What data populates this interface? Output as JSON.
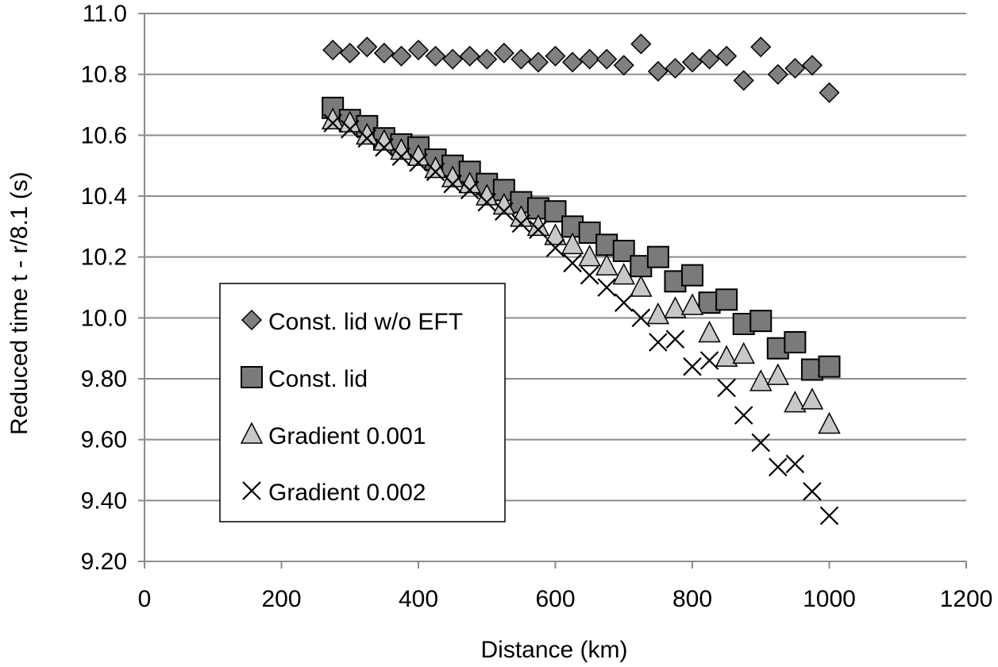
{
  "chart_data": {
    "type": "scatter",
    "title": "",
    "xlabel": "Distance (km)",
    "ylabel": "Reduced time t - r/8.1 (s)",
    "xlim": [
      0,
      1200
    ],
    "ylim": [
      9.2,
      11.0
    ],
    "x_ticks": [
      0,
      200,
      400,
      600,
      800,
      1000,
      1200
    ],
    "x_tick_labels": [
      "0",
      "200",
      "400",
      "600",
      "800",
      "1000",
      "1200"
    ],
    "y_ticks": [
      9.2,
      9.4,
      9.6,
      9.8,
      10.0,
      10.2,
      10.4,
      10.6,
      10.8,
      11.0
    ],
    "y_tick_labels": [
      "9.20",
      "9.40",
      "9.60",
      "9.80",
      "10.0",
      "10.2",
      "10.4",
      "10.6",
      "10.8",
      "11.0"
    ],
    "grid": "horizontal",
    "legend_position": "left-center",
    "colors": {
      "grid": "#8c8c8c",
      "diamond_fill": "#808080",
      "square_fill": "#7a7a7a",
      "triangle_fill": "#c8c8c8",
      "marker_stroke": "#000000"
    },
    "series": [
      {
        "name": "Const. lid w/o EFT",
        "marker": "diamond",
        "x": [
          275,
          300,
          325,
          350,
          375,
          400,
          425,
          450,
          475,
          500,
          525,
          550,
          575,
          600,
          625,
          650,
          675,
          700,
          725,
          750,
          775,
          800,
          825,
          850,
          875,
          900,
          925,
          950,
          975,
          1000
        ],
        "y": [
          10.88,
          10.87,
          10.89,
          10.87,
          10.86,
          10.88,
          10.86,
          10.85,
          10.86,
          10.85,
          10.87,
          10.85,
          10.84,
          10.86,
          10.84,
          10.85,
          10.85,
          10.83,
          10.9,
          10.81,
          10.82,
          10.84,
          10.85,
          10.86,
          10.78,
          10.89,
          10.8,
          10.82,
          10.83,
          10.74
        ]
      },
      {
        "name": "Const. lid",
        "marker": "square",
        "x": [
          275,
          300,
          325,
          350,
          375,
          400,
          425,
          450,
          475,
          500,
          525,
          550,
          575,
          600,
          625,
          650,
          675,
          700,
          725,
          750,
          775,
          800,
          825,
          850,
          875,
          900,
          925,
          950,
          975,
          1000
        ],
        "y": [
          10.69,
          10.65,
          10.63,
          10.59,
          10.57,
          10.56,
          10.52,
          10.5,
          10.48,
          10.44,
          10.42,
          10.38,
          10.36,
          10.35,
          10.3,
          10.28,
          10.24,
          10.22,
          10.17,
          10.2,
          10.12,
          10.14,
          10.05,
          10.06,
          9.98,
          9.99,
          9.9,
          9.92,
          9.83,
          9.84
        ]
      },
      {
        "name": "Gradient 0.001",
        "marker": "triangle",
        "x": [
          275,
          300,
          325,
          350,
          375,
          400,
          425,
          450,
          475,
          500,
          525,
          550,
          575,
          600,
          625,
          650,
          675,
          700,
          725,
          750,
          775,
          800,
          825,
          850,
          875,
          900,
          925,
          950,
          975,
          1000
        ],
        "y": [
          10.65,
          10.64,
          10.6,
          10.58,
          10.55,
          10.53,
          10.49,
          10.46,
          10.44,
          10.4,
          10.37,
          10.33,
          10.3,
          10.27,
          10.24,
          10.2,
          10.17,
          10.14,
          10.1,
          10.01,
          10.03,
          10.04,
          9.95,
          9.87,
          9.88,
          9.79,
          9.81,
          9.72,
          9.73,
          9.65
        ]
      },
      {
        "name": "Gradient 0.002",
        "marker": "x",
        "x": [
          275,
          300,
          325,
          350,
          375,
          400,
          425,
          450,
          475,
          500,
          525,
          550,
          575,
          600,
          625,
          650,
          675,
          700,
          725,
          750,
          775,
          800,
          825,
          850,
          875,
          900,
          925,
          950,
          975,
          1000
        ],
        "y": [
          10.64,
          10.62,
          10.59,
          10.56,
          10.53,
          10.51,
          10.48,
          10.44,
          10.42,
          10.38,
          10.35,
          10.31,
          10.29,
          10.23,
          10.18,
          10.14,
          10.1,
          10.05,
          10.0,
          9.92,
          9.93,
          9.84,
          9.86,
          9.77,
          9.68,
          9.59,
          9.51,
          9.52,
          9.43,
          9.35
        ]
      }
    ]
  }
}
